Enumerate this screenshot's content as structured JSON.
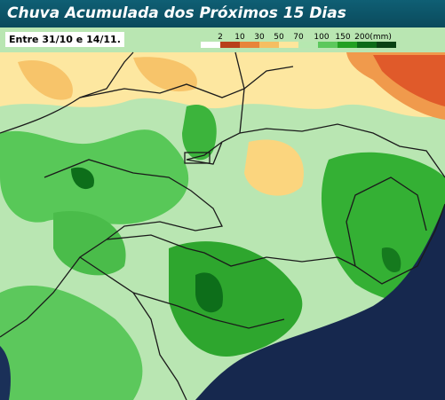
{
  "header": {
    "title": "Chuva Acumulada dos Próximos 15 Dias"
  },
  "subtitle": "Entre 31/10 e 14/11.",
  "legend": {
    "labels": [
      "2",
      "10",
      "30",
      "50",
      "70",
      "100",
      "150",
      "200(mm)"
    ]
  }
}
